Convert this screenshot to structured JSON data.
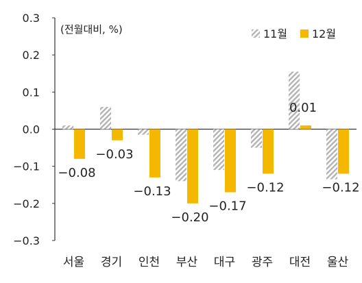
{
  "chart_data": {
    "type": "bar",
    "unit_label": "(전월대비, %)",
    "categories": [
      "서울",
      "경기",
      "인천",
      "부산",
      "대구",
      "광주",
      "대전",
      "울산"
    ],
    "series": [
      {
        "name": "11월",
        "values": [
          0.01,
          0.06,
          -0.015,
          -0.14,
          -0.11,
          -0.05,
          0.155,
          -0.135
        ],
        "color": "#b8b8b8",
        "pattern": "hatch"
      },
      {
        "name": "12월",
        "values": [
          -0.08,
          -0.03,
          -0.13,
          -0.2,
          -0.17,
          -0.12,
          0.01,
          -0.12
        ],
        "color": "#f5b800",
        "pattern": "solid"
      }
    ],
    "data_labels": {
      "series": "12월",
      "texts": [
        "−0.08",
        "−0.03",
        "−0.13",
        "−0.20",
        "−0.17",
        "−0.12",
        "0.01",
        "−0.12"
      ]
    },
    "y_axis": {
      "min": -0.3,
      "max": 0.3,
      "ticks": [
        0.3,
        0.2,
        0.1,
        0.0,
        -0.1,
        -0.2,
        -0.3
      ],
      "tick_labels": [
        "0.3",
        "0.2",
        "0.1",
        "0.0",
        "−0.1",
        "−0.2",
        "−0.3"
      ]
    },
    "legend_position": "top-right",
    "grid": false
  }
}
